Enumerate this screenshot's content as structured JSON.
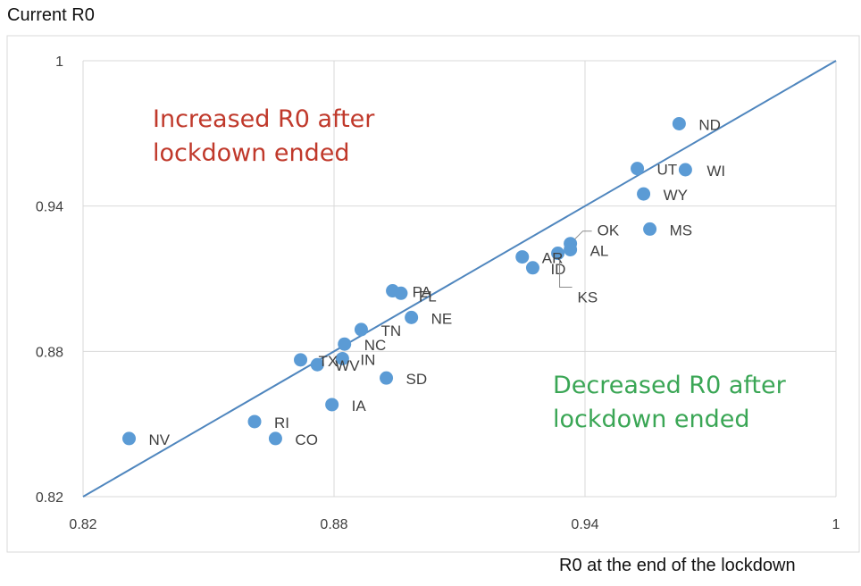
{
  "chart_data": {
    "type": "scatter",
    "title": "",
    "xlabel": "R0 at the end of the lockdown",
    "ylabel": "Current R0",
    "xlim": [
      0.82,
      1
    ],
    "ylim": [
      0.82,
      1
    ],
    "x_ticks": [
      "0.82",
      "0.88",
      "0.94",
      "1"
    ],
    "y_ticks": [
      "0.82",
      "0.88",
      "0.94",
      "1"
    ],
    "grid": true,
    "reference_line": "y = x",
    "colors": {
      "points": "#5b9bd5",
      "line": "#4f86be",
      "increased_text": "#c0392b",
      "decreased_text": "#3aa655",
      "grid": "#d9d9d9"
    },
    "annotations": [
      {
        "lines": [
          "Increased R0 after",
          "lockdown ended"
        ],
        "color": "#c0392b",
        "region": "upper-left"
      },
      {
        "lines": [
          "Decreased R0 after",
          "lockdown ended"
        ],
        "color": "#3aa655",
        "region": "lower-right"
      }
    ],
    "points": [
      {
        "label": "ND",
        "x": 0.9625,
        "y": 0.974
      },
      {
        "label": "UT",
        "x": 0.9525,
        "y": 0.9555
      },
      {
        "label": "WI",
        "x": 0.964,
        "y": 0.955
      },
      {
        "label": "WY",
        "x": 0.954,
        "y": 0.945
      },
      {
        "label": "MS",
        "x": 0.9555,
        "y": 0.9305
      },
      {
        "label": "OK",
        "x": 0.9365,
        "y": 0.9245
      },
      {
        "label": "AL",
        "x": 0.9365,
        "y": 0.922
      },
      {
        "label": "KS",
        "x": 0.9335,
        "y": 0.9205
      },
      {
        "label": "AR",
        "x": 0.925,
        "y": 0.919
      },
      {
        "label": "ID",
        "x": 0.9275,
        "y": 0.9145
      },
      {
        "label": "PA",
        "x": 0.894,
        "y": 0.905
      },
      {
        "label": "FL",
        "x": 0.896,
        "y": 0.904
      },
      {
        "label": "NE",
        "x": 0.8985,
        "y": 0.894
      },
      {
        "label": "TN",
        "x": 0.8865,
        "y": 0.889
      },
      {
        "label": "NC",
        "x": 0.8825,
        "y": 0.883
      },
      {
        "label": "IN",
        "x": 0.882,
        "y": 0.877
      },
      {
        "label": "TX",
        "x": 0.872,
        "y": 0.8765
      },
      {
        "label": "WV",
        "x": 0.876,
        "y": 0.8745
      },
      {
        "label": "SD",
        "x": 0.8925,
        "y": 0.869
      },
      {
        "label": "IA",
        "x": 0.8795,
        "y": 0.858
      },
      {
        "label": "RI",
        "x": 0.861,
        "y": 0.851
      },
      {
        "label": "NV",
        "x": 0.831,
        "y": 0.844
      },
      {
        "label": "CO",
        "x": 0.866,
        "y": 0.844
      }
    ]
  }
}
